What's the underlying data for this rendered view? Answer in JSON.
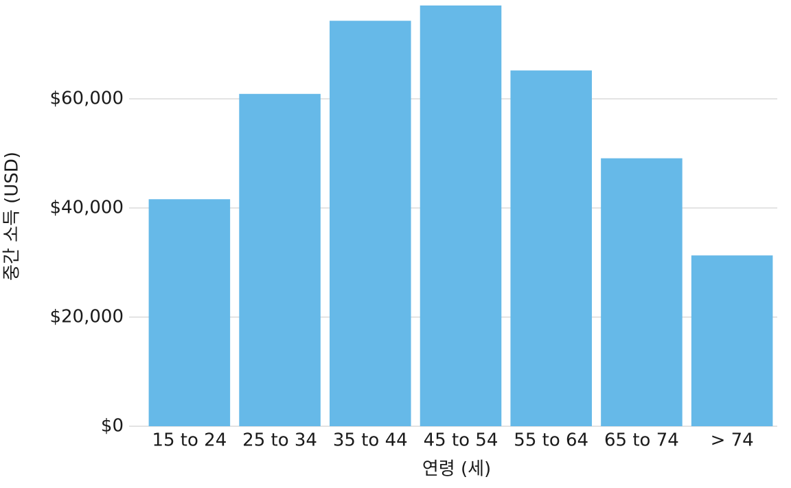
{
  "chart_data": {
    "type": "bar",
    "x_label": "연령 (세)",
    "y_label": "중간 소득 (USD)",
    "categories": [
      "15 to 24",
      "25 to 34",
      "35 to 44",
      "45 to 54",
      "55 to 64",
      "65 to 74",
      "> 74"
    ],
    "values": [
      41600,
      60900,
      74300,
      77100,
      65200,
      49100,
      31300
    ],
    "color": "#66b9e8",
    "ylim": [
      0,
      77100
    ],
    "yticks": [
      {
        "value": 0,
        "label": "$0"
      },
      {
        "value": 20000,
        "label": "$20,000"
      },
      {
        "value": 40000,
        "label": "$40,000"
      },
      {
        "value": 60000,
        "label": "$60,000"
      }
    ],
    "grid": true
  }
}
